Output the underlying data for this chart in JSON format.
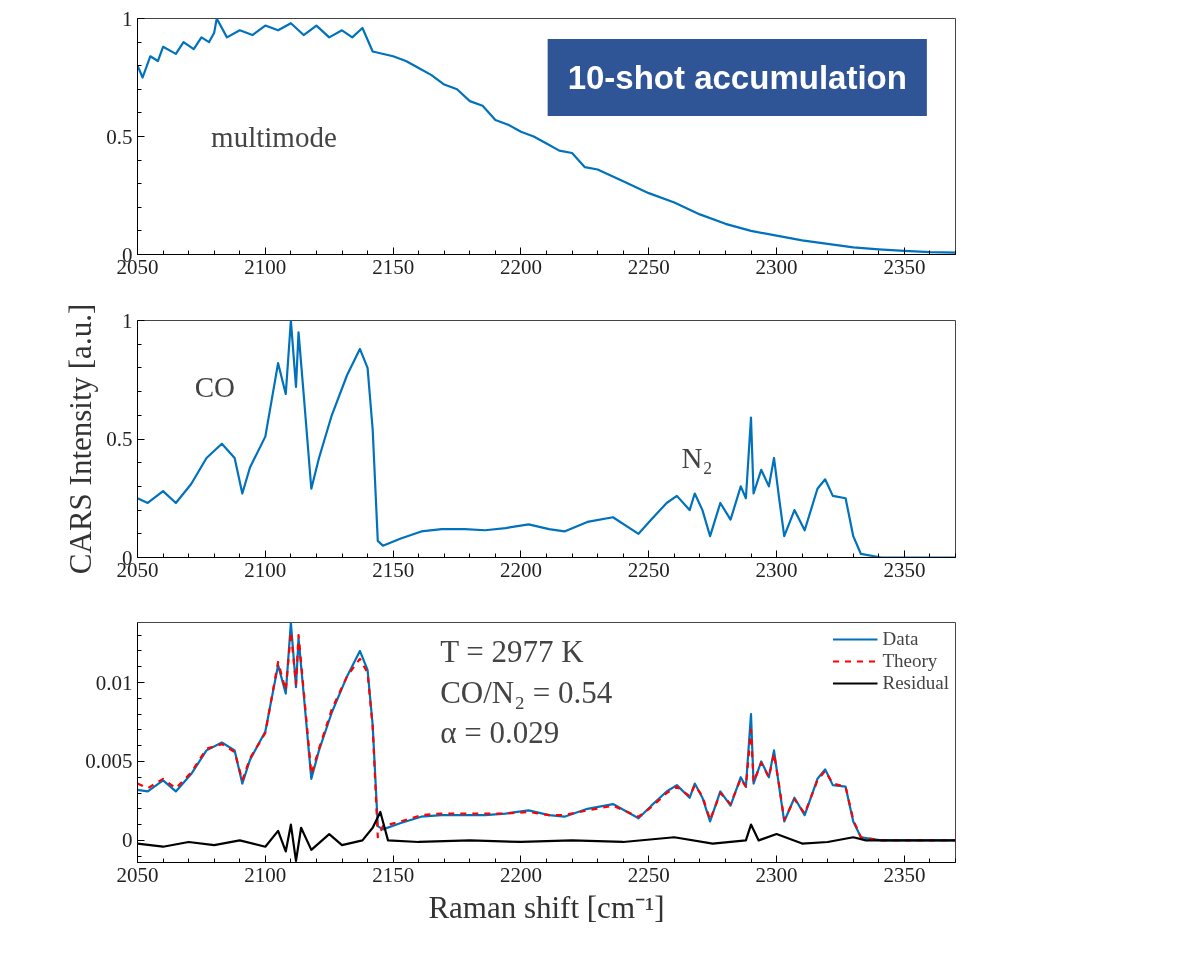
{
  "chart_data": [
    {
      "type": "line",
      "xlim": [
        2050,
        2370
      ],
      "ylim": [
        0,
        1
      ],
      "xticks": [
        2050,
        2100,
        2150,
        2200,
        2250,
        2300,
        2350
      ],
      "yticks": [
        0,
        0.5,
        1
      ],
      "grid": false,
      "annotations": [
        "multimode",
        "10-shot accumulation"
      ],
      "series": [
        {
          "color": "#0072bd",
          "x": [
            2050,
            2052,
            2055,
            2058,
            2060,
            2065,
            2068,
            2072,
            2075,
            2078,
            2080,
            2081,
            2085,
            2090,
            2095,
            2100,
            2105,
            2110,
            2115,
            2120,
            2125,
            2130,
            2134,
            2138,
            2142,
            2150,
            2155,
            2160,
            2165,
            2170,
            2175,
            2180,
            2185,
            2190,
            2195,
            2200,
            2205,
            2210,
            2215,
            2220,
            2225,
            2230,
            2240,
            2250,
            2260,
            2270,
            2280,
            2290,
            2300,
            2310,
            2320,
            2330,
            2340,
            2350,
            2360,
            2370
          ],
          "values": [
            0.8,
            0.75,
            0.84,
            0.82,
            0.88,
            0.85,
            0.9,
            0.87,
            0.92,
            0.9,
            0.94,
            1.0,
            0.92,
            0.95,
            0.93,
            0.97,
            0.95,
            0.98,
            0.93,
            0.97,
            0.92,
            0.95,
            0.92,
            0.96,
            0.86,
            0.84,
            0.82,
            0.79,
            0.76,
            0.72,
            0.7,
            0.65,
            0.63,
            0.57,
            0.55,
            0.52,
            0.5,
            0.47,
            0.44,
            0.43,
            0.37,
            0.36,
            0.31,
            0.26,
            0.22,
            0.17,
            0.13,
            0.1,
            0.08,
            0.06,
            0.045,
            0.03,
            0.022,
            0.015,
            0.01,
            0.008
          ]
        }
      ]
    },
    {
      "type": "line",
      "xlim": [
        2050,
        2370
      ],
      "ylim": [
        0,
        1
      ],
      "xticks": [
        2050,
        2100,
        2150,
        2200,
        2250,
        2300,
        2350
      ],
      "yticks": [
        0,
        0.5,
        1
      ],
      "grid": false,
      "ylabel": "CARS Intensity [a.u.]",
      "annotations": [
        "CO",
        "N₂"
      ],
      "series": [
        {
          "color": "#0072bd",
          "x": [
            2050,
            2054,
            2060,
            2065,
            2071,
            2077,
            2083,
            2088,
            2091,
            2094,
            2100,
            2105,
            2108,
            2110,
            2112,
            2113,
            2115,
            2118,
            2121,
            2126,
            2132,
            2137,
            2140,
            2142,
            2144,
            2146,
            2153,
            2161,
            2169,
            2178,
            2186,
            2194,
            2203,
            2211,
            2217,
            2226,
            2236,
            2246,
            2251,
            2257,
            2261,
            2266,
            2268,
            2271,
            2274,
            2278,
            2282,
            2286,
            2288,
            2290,
            2291,
            2294,
            2297,
            2299,
            2301,
            2303,
            2307,
            2311,
            2316,
            2319,
            2322,
            2327,
            2330,
            2333,
            2341,
            2370
          ],
          "values": [
            0.25,
            0.23,
            0.28,
            0.23,
            0.31,
            0.42,
            0.48,
            0.42,
            0.27,
            0.38,
            0.51,
            0.82,
            0.69,
            1.0,
            0.72,
            0.95,
            0.69,
            0.29,
            0.42,
            0.6,
            0.77,
            0.88,
            0.8,
            0.54,
            0.07,
            0.05,
            0.08,
            0.11,
            0.12,
            0.12,
            0.115,
            0.124,
            0.14,
            0.12,
            0.11,
            0.15,
            0.17,
            0.1,
            0.16,
            0.23,
            0.26,
            0.2,
            0.27,
            0.2,
            0.09,
            0.23,
            0.16,
            0.3,
            0.25,
            0.59,
            0.27,
            0.37,
            0.3,
            0.42,
            0.25,
            0.09,
            0.2,
            0.115,
            0.29,
            0.33,
            0.26,
            0.25,
            0.09,
            0.015,
            0,
            0
          ]
        }
      ]
    },
    {
      "type": "line",
      "xlim": [
        2050,
        2370
      ],
      "ylim": [
        -0.0014,
        0.0138
      ],
      "xticks": [
        2050,
        2100,
        2150,
        2200,
        2250,
        2300,
        2350
      ],
      "yticks": [
        0,
        0.005,
        0.01
      ],
      "grid": false,
      "legend": "top right",
      "xlabel": "Raman shift [cm⁻¹]",
      "annotations": [
        "T = 2977 K",
        "CO/N₂ = 0.54",
        "α = 0.029"
      ],
      "series": [
        {
          "name": "Data",
          "color": "#0072bd",
          "line_style": "solid",
          "x": [
            2050,
            2054,
            2060,
            2065,
            2071,
            2077,
            2083,
            2088,
            2091,
            2094,
            2100,
            2105,
            2108,
            2110,
            2112,
            2113,
            2115,
            2118,
            2121,
            2126,
            2132,
            2137,
            2140,
            2142,
            2144,
            2146,
            2153,
            2161,
            2169,
            2178,
            2186,
            2194,
            2203,
            2211,
            2217,
            2226,
            2236,
            2246,
            2251,
            2257,
            2261,
            2266,
            2268,
            2271,
            2274,
            2278,
            2282,
            2286,
            2288,
            2290,
            2291,
            2294,
            2297,
            2299,
            2301,
            2303,
            2307,
            2311,
            2316,
            2319,
            2322,
            2327,
            2330,
            2333,
            2341,
            2370
          ],
          "values": [
            0.0032,
            0.0031,
            0.0038,
            0.0031,
            0.0042,
            0.0057,
            0.0062,
            0.0057,
            0.0036,
            0.0051,
            0.0069,
            0.0111,
            0.0093,
            0.0138,
            0.0097,
            0.0128,
            0.0093,
            0.0039,
            0.0057,
            0.0081,
            0.0104,
            0.012,
            0.0108,
            0.0073,
            0.0009,
            0.0007,
            0.0011,
            0.0015,
            0.0016,
            0.0016,
            0.0016,
            0.0017,
            0.0019,
            0.0016,
            0.0015,
            0.002,
            0.0023,
            0.0014,
            0.0022,
            0.0031,
            0.0035,
            0.0027,
            0.0036,
            0.0027,
            0.0012,
            0.0031,
            0.0022,
            0.004,
            0.0034,
            0.008,
            0.0036,
            0.005,
            0.004,
            0.0057,
            0.0034,
            0.0012,
            0.0027,
            0.0016,
            0.0039,
            0.0045,
            0.0035,
            0.0034,
            0.0012,
            0.0002,
            0,
            0
          ]
        },
        {
          "name": "Theory",
          "color": "#ff0000",
          "line_style": "dashed",
          "x": [
            2050,
            2054,
            2060,
            2065,
            2071,
            2077,
            2083,
            2088,
            2091,
            2094,
            2100,
            2105,
            2108,
            2110,
            2112,
            2113,
            2115,
            2118,
            2121,
            2126,
            2132,
            2137,
            2140,
            2142,
            2144,
            2146,
            2153,
            2161,
            2169,
            2178,
            2186,
            2194,
            2203,
            2211,
            2217,
            2226,
            2236,
            2246,
            2251,
            2257,
            2261,
            2266,
            2268,
            2271,
            2274,
            2278,
            2282,
            2286,
            2288,
            2290,
            2291,
            2294,
            2297,
            2299,
            2301,
            2303,
            2307,
            2311,
            2316,
            2319,
            2322,
            2327,
            2330,
            2333,
            2341,
            2370
          ],
          "values": [
            0.0036,
            0.0033,
            0.0039,
            0.0033,
            0.0043,
            0.0058,
            0.0061,
            0.0056,
            0.0038,
            0.0052,
            0.0068,
            0.0113,
            0.0095,
            0.0132,
            0.0099,
            0.013,
            0.0095,
            0.0042,
            0.0058,
            0.0083,
            0.0104,
            0.0115,
            0.0106,
            0.0072,
            0.0002,
            0.0009,
            0.0012,
            0.0016,
            0.0017,
            0.0017,
            0.0017,
            0.0017,
            0.0018,
            0.0016,
            0.0016,
            0.0019,
            0.0022,
            0.0015,
            0.0021,
            0.003,
            0.0034,
            0.0028,
            0.0035,
            0.0028,
            0.0013,
            0.003,
            0.0023,
            0.0039,
            0.0034,
            0.007,
            0.0037,
            0.0049,
            0.004,
            0.0055,
            0.0035,
            0.0013,
            0.0026,
            0.0017,
            0.0038,
            0.0044,
            0.0036,
            0.0034,
            0.0013,
            0.0002,
            0,
            0
          ]
        },
        {
          "name": "Residual",
          "color": "#000000",
          "line_style": "solid",
          "x": [
            2050,
            2060,
            2070,
            2080,
            2090,
            2100,
            2105,
            2108,
            2110,
            2112,
            2114,
            2118,
            2125,
            2130,
            2138,
            2142,
            2145,
            2148,
            2160,
            2180,
            2200,
            2220,
            2240,
            2260,
            2275,
            2288,
            2290,
            2293,
            2300,
            2310,
            2320,
            2330,
            2335,
            2370
          ],
          "values": [
            -0.0002,
            -0.0004,
            -0.0001,
            -0.0003,
            0,
            -0.0004,
            0.0006,
            -0.0007,
            0.001,
            -0.0013,
            0.0008,
            -0.0006,
            0.0004,
            -0.0003,
            0,
            0.0008,
            0.0018,
            0,
            -0.0001,
            0,
            -0.0001,
            0,
            -0.0001,
            0.0002,
            -0.0002,
            0,
            0.001,
            0,
            0.0004,
            -0.0002,
            -0.0001,
            0.0002,
            0,
            0
          ]
        }
      ]
    }
  ]
}
